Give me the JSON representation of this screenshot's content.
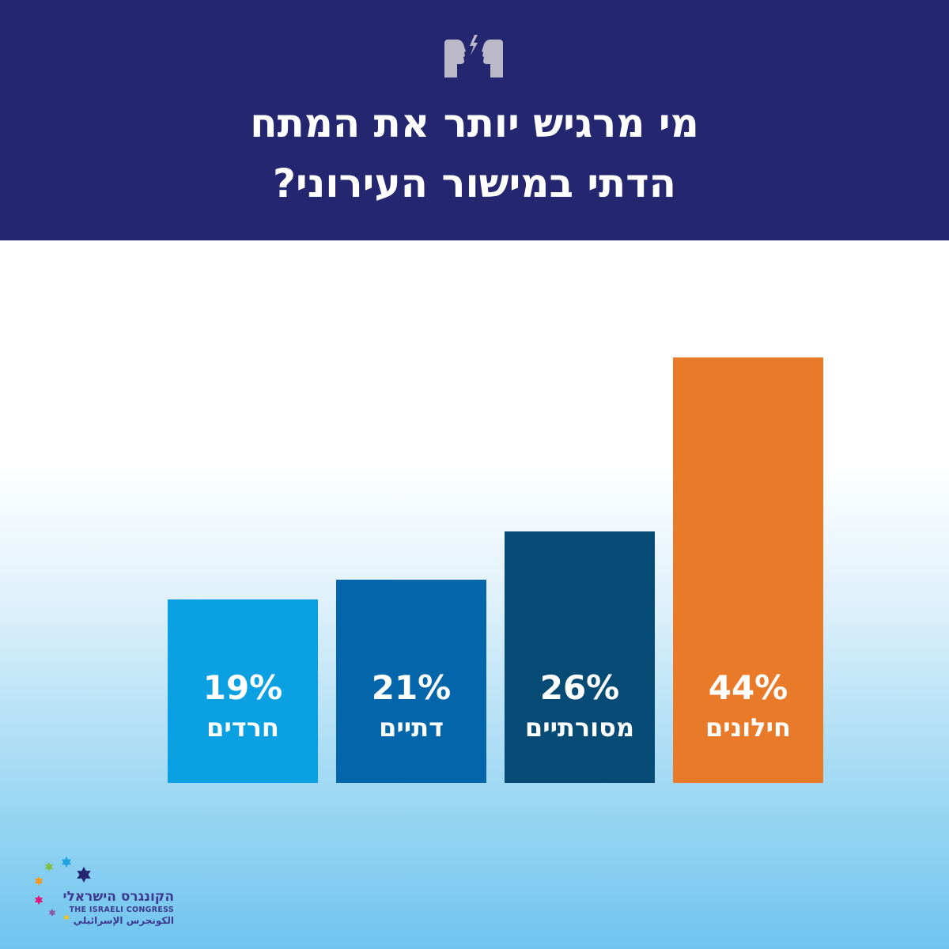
{
  "header": {
    "icon": "two-faces-lightning-icon",
    "background": "#24266f",
    "title_line1": "מי מרגיש יותר את המתח",
    "title_line2": "הדתי במישור העירוני?"
  },
  "chart_data": {
    "type": "bar",
    "title": "מי מרגיש יותר את המתח הדתי במישור העירוני?",
    "categories": [
      "חרדים",
      "דתיים",
      "מסורתיים",
      "חילונים"
    ],
    "values": [
      19,
      21,
      26,
      44
    ],
    "value_labels": [
      "19%",
      "21%",
      "26%",
      "44%"
    ],
    "colors": [
      "#0aa0e2",
      "#0466aa",
      "#064b75",
      "#e87a2a"
    ],
    "unit": "%",
    "ylim": [
      0,
      44
    ],
    "grid": false,
    "legend": "none"
  },
  "logo": {
    "name_he": "הקונגרס הישראלי",
    "name_en": "THE ISRAELI CONGRESS",
    "name_ar": "الكونجرس الإسرائيلي"
  }
}
